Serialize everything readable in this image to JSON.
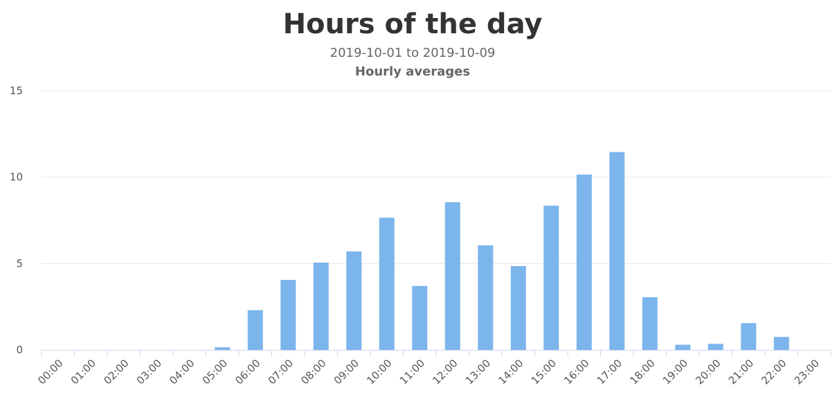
{
  "chart_data": {
    "type": "bar",
    "title": "Hours of the day",
    "subtitle": "2019-10-01 to 2019-10-09",
    "subtitle2": "Hourly averages",
    "categories": [
      "00:00",
      "01:00",
      "02:00",
      "03:00",
      "04:00",
      "05:00",
      "06:00",
      "07:00",
      "08:00",
      "09:00",
      "10:00",
      "11:00",
      "12:00",
      "13:00",
      "14:00",
      "15:00",
      "16:00",
      "17:00",
      "18:00",
      "19:00",
      "20:00",
      "21:00",
      "22:00",
      "23:00"
    ],
    "series": [
      {
        "values": [
          0,
          0,
          0,
          0,
          0,
          0.15,
          2.3,
          4.05,
          5.05,
          5.7,
          7.65,
          3.7,
          8.55,
          6.05,
          4.85,
          8.35,
          10.15,
          11.45,
          3.05,
          0.3,
          0.35,
          1.55,
          0.75,
          0
        ]
      }
    ],
    "ylim": [
      0,
      15
    ],
    "yticks": [
      "0",
      "5",
      "10",
      "15"
    ],
    "grid": true,
    "legend": "none",
    "colors": {
      "bar": "#7cb5ec",
      "title": "#333333",
      "subtitle": "#666666",
      "grid": "#e6e6e6",
      "axis": "#ccd6eb"
    }
  }
}
